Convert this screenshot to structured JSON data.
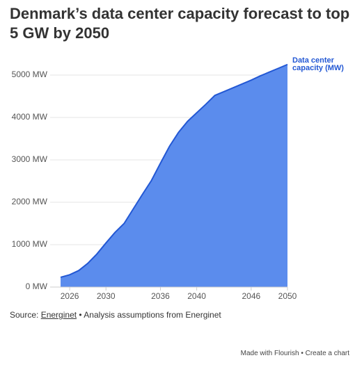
{
  "chart_data": {
    "type": "area",
    "title": "Denmark’s data center capacity forecast to top 5 GW by 2050",
    "x": [
      2025,
      2026,
      2027,
      2028,
      2029,
      2030,
      2031,
      2032,
      2033,
      2034,
      2035,
      2036,
      2037,
      2038,
      2039,
      2040,
      2041,
      2042,
      2043,
      2044,
      2045,
      2046,
      2047,
      2048,
      2049,
      2050
    ],
    "series": [
      {
        "name": "Data center capacity (MW)",
        "color": "#2358d4",
        "fill": "#5b8ced",
        "values": [
          230,
          290,
          390,
          560,
          780,
          1040,
          1290,
          1500,
          1840,
          2180,
          2510,
          2920,
          3320,
          3650,
          3910,
          4110,
          4310,
          4520,
          4610,
          4700,
          4790,
          4880,
          4980,
          5070,
          5160,
          5250
        ]
      }
    ],
    "xlim": [
      2024,
      2050
    ],
    "xticks": [
      2026,
      2030,
      2036,
      2040,
      2046,
      2050
    ],
    "ylim": [
      0,
      5500
    ],
    "yticks": [
      {
        "value": 0,
        "label": "0 MW"
      },
      {
        "value": 1000,
        "label": "1000 MW"
      },
      {
        "value": 2000,
        "label": "2000 MW"
      },
      {
        "value": 3000,
        "label": "3000 MW"
      },
      {
        "value": 4000,
        "label": "4000 MW"
      },
      {
        "value": 5000,
        "label": "5000 MW"
      }
    ],
    "grid": true,
    "source_prefix": "Source:",
    "source_link": "Energinet",
    "source_rest": "• Analysis assumptions from Energinet",
    "footer_left": "Made with Flourish",
    "footer_right": "• Create a chart"
  }
}
